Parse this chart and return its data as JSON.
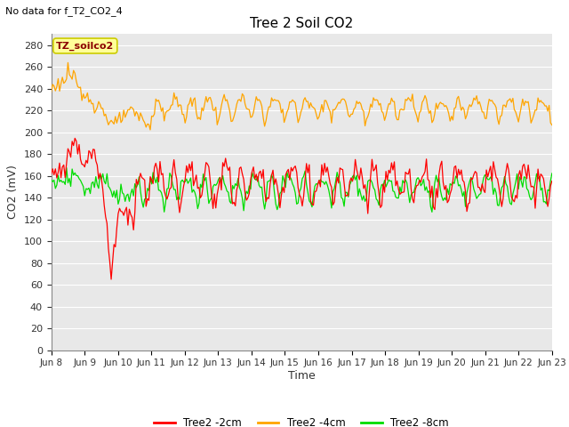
{
  "title": "Tree 2 Soil CO2",
  "top_left_text": "No data for f_T2_CO2_4",
  "ylabel": "CO2 (mV)",
  "xlabel": "Time",
  "annotation": "TZ_soilco2",
  "ylim": [
    0,
    290
  ],
  "yticks": [
    0,
    20,
    40,
    60,
    80,
    100,
    120,
    140,
    160,
    180,
    200,
    220,
    240,
    260,
    280
  ],
  "xtick_labels": [
    "Jun 8",
    "Jun 9",
    "Jun 10",
    "Jun 11",
    "Jun 12",
    "Jun 13",
    "Jun 14",
    "Jun 15",
    "Jun 16",
    "Jun 17",
    "Jun 18",
    "Jun 19",
    "Jun 20",
    "Jun 21",
    "Jun 22",
    "Jun 23"
  ],
  "colors": {
    "red": "#FF0000",
    "orange": "#FFA500",
    "green": "#00DD00",
    "background": "#E8E8E8",
    "grid": "#FFFFFF",
    "annotation_bg": "#FFFF99",
    "annotation_border": "#CCCC00"
  },
  "legend": [
    {
      "label": "Tree2 -2cm",
      "color": "#FF0000"
    },
    {
      "label": "Tree2 -4cm",
      "color": "#FFA500"
    },
    {
      "label": "Tree2 -8cm",
      "color": "#00DD00"
    }
  ]
}
